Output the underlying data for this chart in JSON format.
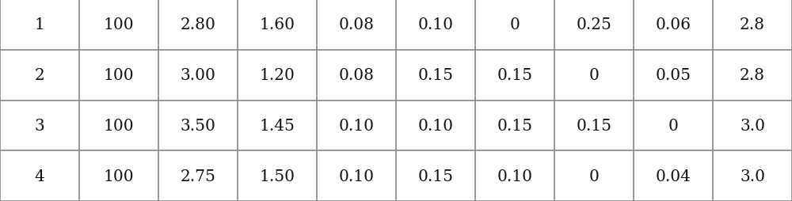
{
  "rows": [
    [
      "1",
      "100",
      "2.80",
      "1.60",
      "0.08",
      "0.10",
      "0",
      "0.25",
      "0.06",
      "2.8"
    ],
    [
      "2",
      "100",
      "3.00",
      "1.20",
      "0.08",
      "0.15",
      "0.15",
      "0",
      "0.05",
      "2.8"
    ],
    [
      "3",
      "100",
      "3.50",
      "1.45",
      "0.10",
      "0.10",
      "0.15",
      "0.15",
      "0",
      "3.0"
    ],
    [
      "4",
      "100",
      "2.75",
      "1.50",
      "0.10",
      "0.15",
      "0.10",
      "0",
      "0.04",
      "3.0"
    ]
  ],
  "num_cols": 10,
  "num_rows": 4,
  "background_color": "#ffffff",
  "line_color": "#888888",
  "text_color": "#111111",
  "font_size": 14.5,
  "figsize": [
    10.0,
    2.55
  ],
  "dpi": 100
}
